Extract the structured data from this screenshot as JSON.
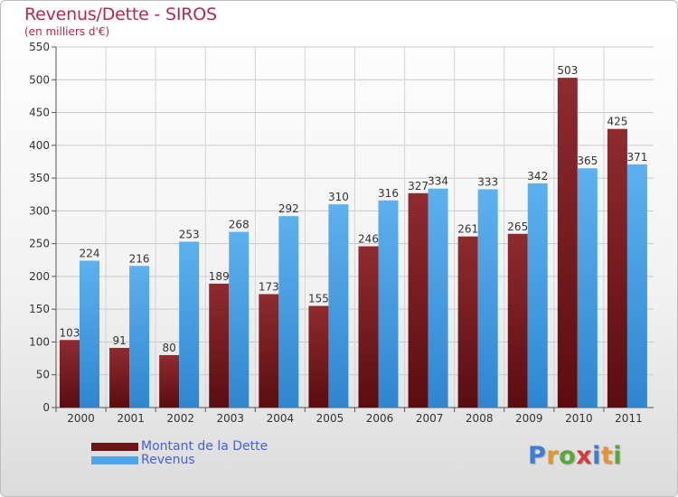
{
  "chart_data": {
    "type": "bar",
    "title": "Revenus/Dette - SIROS",
    "subtitle": "(en milliers d'€)",
    "categories": [
      "2000",
      "2001",
      "2002",
      "2003",
      "2004",
      "2005",
      "2006",
      "2007",
      "2008",
      "2009",
      "2010",
      "2011"
    ],
    "series": [
      {
        "name": "Montant de la Dette",
        "color": "#7b1f22",
        "values": [
          103,
          91,
          80,
          189,
          173,
          155,
          246,
          327,
          261,
          265,
          503,
          425
        ]
      },
      {
        "name": "Revenus",
        "color": "#4fa5e6",
        "values": [
          224,
          216,
          253,
          268,
          292,
          310,
          316,
          334,
          333,
          342,
          365,
          371
        ]
      }
    ],
    "ylim": [
      0,
      550
    ],
    "yticks": [
      0,
      50,
      100,
      150,
      200,
      250,
      300,
      350,
      400,
      450,
      500,
      550
    ],
    "grid": true,
    "legend": "bottom-left"
  },
  "logo": {
    "letters": [
      "P",
      "r",
      "o",
      "x",
      "i",
      "t",
      "i"
    ],
    "colors": [
      "#3a7fd4",
      "#e8932d",
      "#5aa83c",
      "#d63a3a",
      "#3a7fd4",
      "#e8932d",
      "#5aa83c"
    ]
  }
}
